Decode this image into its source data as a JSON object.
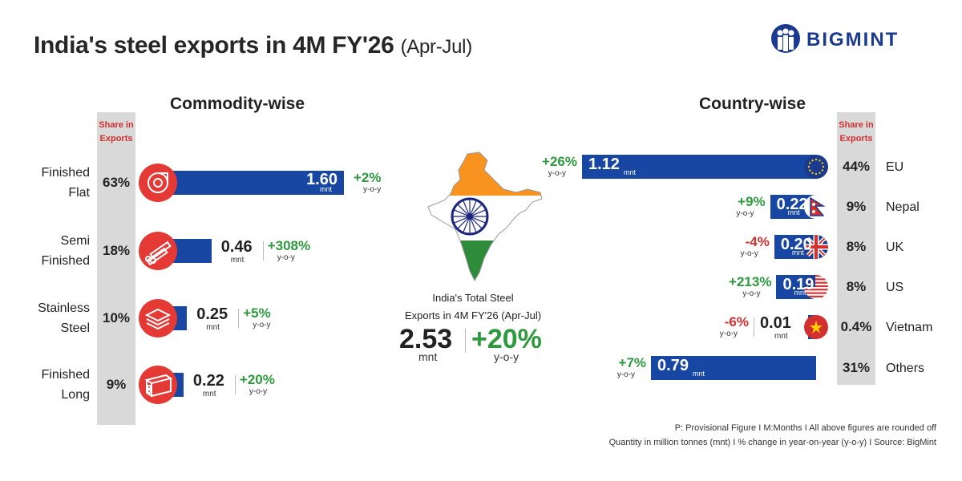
{
  "title": {
    "main": "India's steel exports in 4M FY'26",
    "sub": "(Apr-Jul)"
  },
  "brand": "BIGMINT",
  "sections": {
    "commodity": "Commodity-wise",
    "country": "Country-wise"
  },
  "share_header": {
    "line1": "Share in",
    "line2": "Exports"
  },
  "unit": "mnt",
  "yoy_label": "y-o-y",
  "center": {
    "line1": "India's Total Steel",
    "line2": "Exports in 4M FY'26 (Apr-Jul)",
    "total": "2.53",
    "total_unit": "mnt",
    "yoy": "+20%",
    "yoy_label": "y-o-y"
  },
  "chart_data": [
    {
      "type": "bar",
      "title": "Commodity-wise",
      "categories": [
        "Finished Flat",
        "Semi Finished",
        "Stainless Steel",
        "Finished Long"
      ],
      "category_lines": [
        [
          "Finished",
          "Flat"
        ],
        [
          "Semi",
          "Finished"
        ],
        [
          "Stainless",
          "Steel"
        ],
        [
          "Finished",
          "Long"
        ]
      ],
      "values": [
        1.6,
        0.46,
        0.25,
        0.22
      ],
      "value_labels": [
        "1.60",
        "0.46",
        "0.25",
        "0.22"
      ],
      "share": [
        "63%",
        "18%",
        "10%",
        "9%"
      ],
      "yoy": [
        "+2%",
        "+308%",
        "+5%",
        "+20%"
      ],
      "icons": [
        "coil-icon",
        "billet-icon",
        "sheet-stack-icon",
        "rebar-bundle-icon"
      ],
      "unit": "mnt",
      "orientation": "horizontal"
    },
    {
      "type": "bar",
      "title": "Country-wise",
      "categories": [
        "EU",
        "Nepal",
        "UK",
        "US",
        "Vietnam",
        "Others"
      ],
      "values": [
        1.12,
        0.22,
        0.2,
        0.19,
        0.01,
        0.79
      ],
      "value_labels": [
        "1.12",
        "0.22",
        "0.20",
        "0.19",
        "0.01",
        "0.79"
      ],
      "share": [
        "44%",
        "9%",
        "8%",
        "8%",
        "0.4%",
        "31%"
      ],
      "yoy": [
        "+26%",
        "+9%",
        "-4%",
        "+213%",
        "-6%",
        "+7%"
      ],
      "flags": [
        "eu-flag-icon",
        "nepal-flag-icon",
        "uk-flag-icon",
        "us-flag-icon",
        "vietnam-flag-icon",
        ""
      ],
      "unit": "mnt",
      "orientation": "horizontal"
    }
  ],
  "colors": {
    "bar": "#1846a3",
    "positive": "#2e9a3e",
    "negative": "#d32f2f",
    "share_bg": "#d9d9d9",
    "icon_bg": "#e53935",
    "india_saffron": "#f7931e",
    "india_green": "#2e8b3a",
    "brand": "#1a3a8f"
  },
  "footnotes": [
    "P: Provisional Figure  I  M:Months I All above figures are rounded off",
    "Quantity in million tonnes (mnt)  I  % change in year-on-year (y-o-y)  I  Source: BigMint"
  ]
}
